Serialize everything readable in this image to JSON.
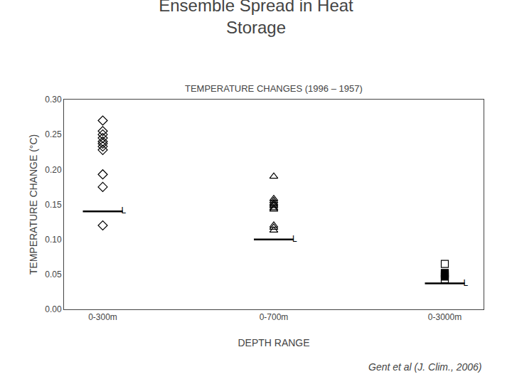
{
  "chart_data": {
    "type": "scatter",
    "title": "Ensemble Spread in Heat\nStorage",
    "subtitle": "TEMPERATURE CHANGES (1996 – 1957)",
    "x_label": "DEPTH RANGE",
    "y_label": "TEMPERATURE CHANGE (°C)",
    "annotations": [
      "Gent et al (J. Clim., 2006)"
    ],
    "categories": [
      "0-300m",
      "0-700m",
      "0-3000m"
    ],
    "ylim": [
      0.0,
      0.3
    ],
    "yticks": [
      {
        "value": 0.0,
        "label": "0.00"
      },
      0.05,
      {
        "value": 0.1,
        "label": "0.10"
      },
      0.15,
      {
        "value": 0.2,
        "label": "0.20"
      },
      0.25,
      {
        "value": 0.3,
        "label": "0.30"
      }
    ],
    "grid": false,
    "series": [
      {
        "marker": "diamond-open",
        "color": "#000000",
        "x": [
          "0-300m",
          "0-300m",
          "0-300m",
          "0-300m",
          "0-300m",
          "0-300m",
          "0-300m",
          "0-300m",
          "0-300m",
          "0-300m",
          "0-300m"
        ],
        "values": [
          0.27,
          0.255,
          0.25,
          0.245,
          0.24,
          0.237,
          0.233,
          0.228,
          0.193,
          0.175,
          0.12
        ]
      },
      {
        "marker": "triangle-up-open",
        "color": "#000000",
        "x": [
          "0-700m",
          "0-700m",
          "0-700m",
          "0-700m",
          "0-700m",
          "0-700m",
          "0-700m",
          "0-700m",
          "0-700m",
          "0-700m",
          "0-700m"
        ],
        "values": [
          0.19,
          0.158,
          0.155,
          0.152,
          0.15,
          0.148,
          0.145,
          0.143,
          0.12,
          0.117,
          0.113
        ]
      },
      {
        "marker": "square-open",
        "color": "#000000",
        "x": [
          "0-3000m",
          "0-3000m"
        ],
        "values": [
          0.065,
          0.043
        ]
      },
      {
        "marker": "square",
        "color": "#000000",
        "x": [
          "0-3000m",
          "0-3000m",
          "0-3000m"
        ],
        "values": [
          0.052,
          0.05,
          0.047
        ]
      },
      {
        "marker": "line-ew",
        "color": "#000000",
        "x": [
          "0-300m",
          "0-700m",
          "0-3000m"
        ],
        "values": [
          0.14,
          0.1,
          0.037
        ],
        "labels": [
          "L",
          "L",
          "L"
        ]
      }
    ]
  }
}
